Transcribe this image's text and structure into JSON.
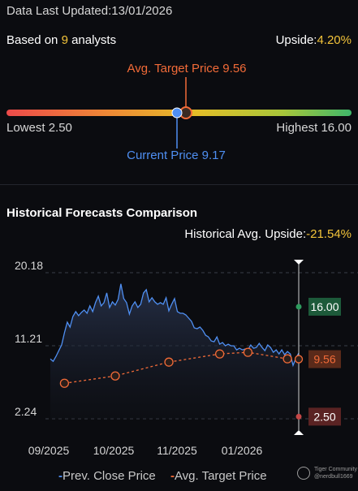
{
  "summary": {
    "updated_label": "Data Last Updated:",
    "updated_date": "13/01/2026",
    "analysts_prefix": "Based on ",
    "analysts_count": "9",
    "analysts_suffix": " analysts",
    "upside_label": "Upside:",
    "upside_value": "4.20%"
  },
  "price_range": {
    "avg_target_label": "Avg. Target Price 9.56",
    "current_label": "Current Price 9.17",
    "lowest_label": "Lowest 2.50",
    "highest_label": "Highest 16.00",
    "lowest": 2.5,
    "highest": 16.0,
    "current": 9.17,
    "avg_target": 9.56
  },
  "history": {
    "title": "Historical Forecasts Comparison",
    "avg_upside_label": "Historical Avg. Upside:",
    "avg_upside_value": "-21.54%"
  },
  "legend": {
    "close_label": "Prev. Close Price",
    "target_label": "Avg. Target Price"
  },
  "watermark": {
    "line1": "Tiger Community",
    "line2": "@nerdbull1669"
  },
  "colors": {
    "close_line": "#4f8ff2",
    "target_line": "#f26b38",
    "highest_tag": "#1d5a3a",
    "current_tag": "#5a2a1a",
    "lowest_tag": "#5a2323",
    "highlight": "#f3c43a"
  },
  "chart_data": {
    "type": "line",
    "y_ticks": [
      "20.18",
      "11.21",
      "2.24"
    ],
    "ylim": [
      2.24,
      20.18
    ],
    "x_ticks": [
      "09/2025",
      "10/2025",
      "11/2025",
      "01/2026"
    ],
    "right_tags": {
      "highest": "16.00",
      "avg_target": "9.56",
      "lowest": "2.50"
    },
    "series": [
      {
        "name": "Prev. Close Price",
        "values": [
          9.6,
          9.3,
          9.9,
          10.6,
          11.3,
          12.8,
          14.1,
          13.5,
          14.8,
          15.4,
          14.9,
          15.3,
          15.6,
          15.2,
          16.1,
          15.4,
          16.5,
          17.3,
          16.1,
          16.5,
          17.7,
          15.9,
          16.6,
          16.2,
          16.9,
          18.8,
          17.0,
          16.5,
          15.1,
          16.1,
          16.6,
          15.9,
          16.3,
          17.7,
          18.1,
          16.6,
          17.1,
          16.6,
          16.3,
          16.5,
          16.3,
          17.1,
          15.5,
          16.3,
          17.0,
          15.4,
          15.2,
          15.2,
          15.0,
          14.6,
          14.2,
          13.4,
          13.3,
          13.5,
          13.1,
          12.5,
          12.3,
          11.8,
          11.7,
          12.3,
          11.4,
          11.6,
          11.2,
          11.4,
          11.2,
          11.2,
          10.7,
          10.9,
          10.7,
          10.8,
          10.7,
          11.3,
          10.9,
          11.0,
          11.5,
          11.0,
          10.6,
          11.3,
          11.0,
          10.4,
          10.7,
          10.2,
          10.7,
          10.1,
          10.5,
          10.2,
          8.8,
          9.7,
          10.3
        ]
      },
      {
        "name": "Avg. Target Price",
        "x_index": [
          5,
          23,
          42,
          60,
          70,
          84
        ],
        "values": [
          6.6,
          7.5,
          9.2,
          10.2,
          10.4,
          9.6
        ]
      }
    ]
  }
}
